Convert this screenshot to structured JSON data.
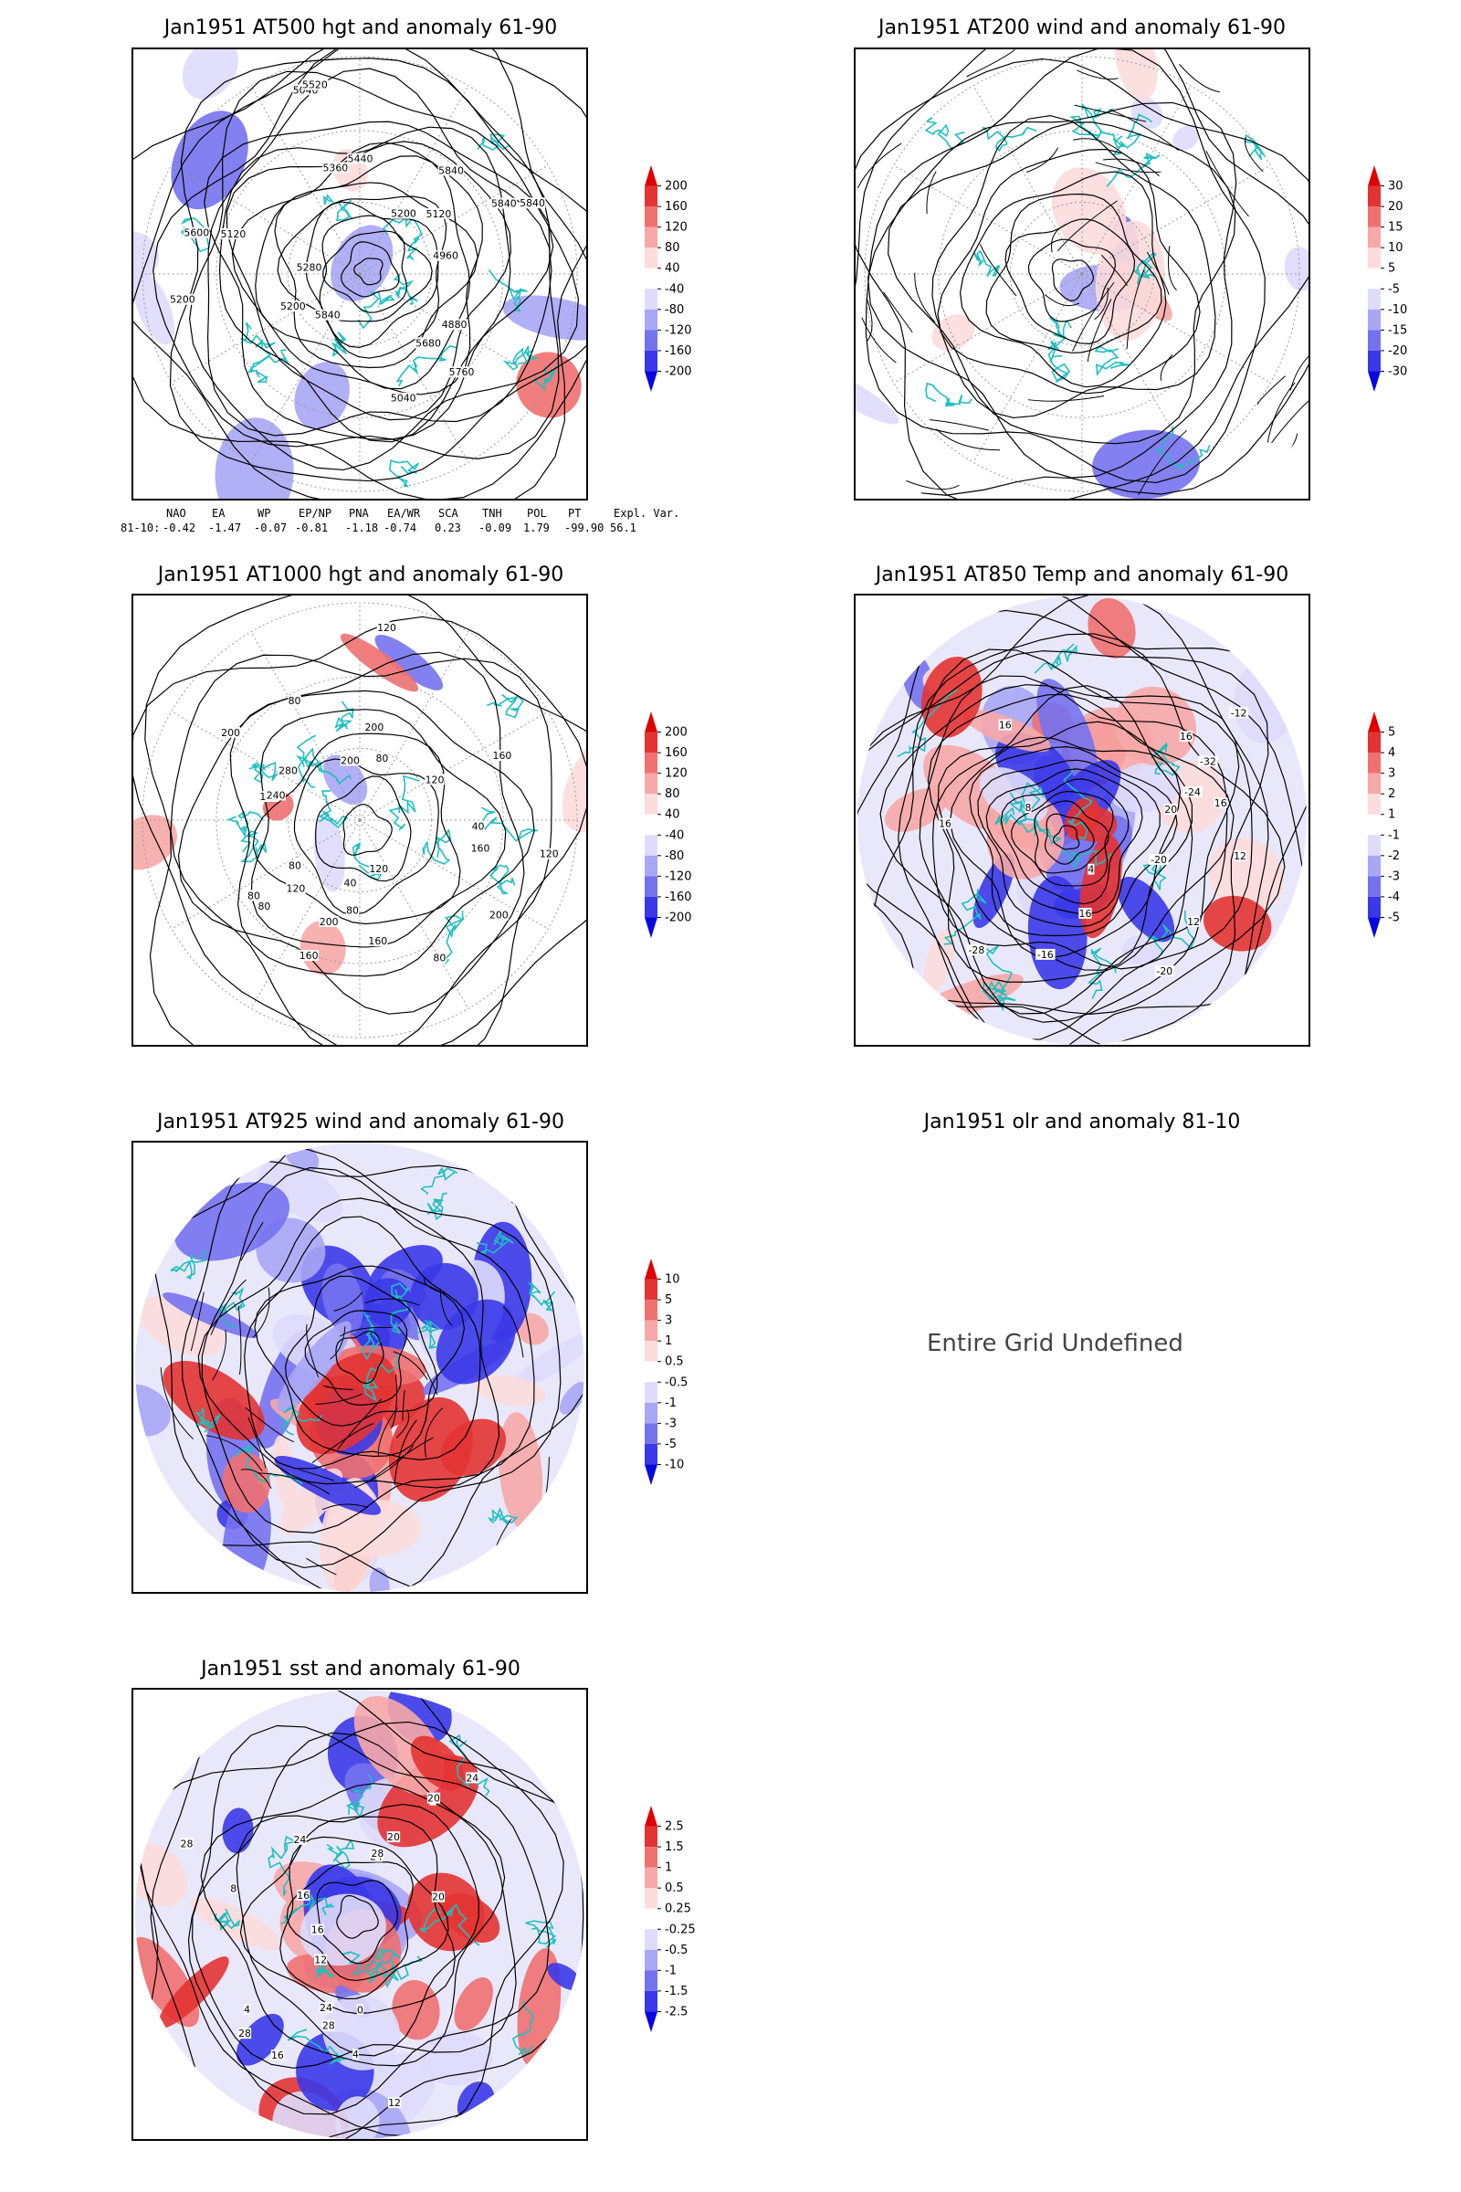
{
  "panels": [
    {
      "id": "p1",
      "title": "Jan1951 AT500 hgt and anomaly 61-90",
      "contour_labels": [
        "5840",
        "5840",
        "5200",
        "5120",
        "5200",
        "5040",
        "4960",
        "5040",
        "5120",
        "5200",
        "5280",
        "5360",
        "5440",
        "5520",
        "5600",
        "5680",
        "5760",
        "5840",
        "5840",
        "4880"
      ],
      "colorbar": [
        "200",
        "160",
        "120",
        "80",
        "40",
        "-40",
        "-80",
        "-120",
        "-160",
        "-200"
      ]
    },
    {
      "id": "p2",
      "title": "Jan1951 AT200 wind and anomaly 61-90",
      "contour_labels": [],
      "colorbar": [
        "30",
        "20",
        "15",
        "10",
        "5",
        "-5",
        "-10",
        "-15",
        "-20",
        "-30"
      ]
    },
    {
      "id": "p3",
      "title": "Jan1951 AT1000 hgt and anomaly 61-90",
      "contour_labels": [
        "80",
        "120",
        "80",
        "160",
        "200",
        "240",
        "200",
        "280",
        "200",
        "160",
        "120",
        "80",
        "40",
        "160",
        "200",
        "160",
        "120",
        "80",
        "200",
        "160",
        "120",
        "80",
        "40",
        "120",
        "80",
        "80"
      ],
      "colorbar": [
        "200",
        "160",
        "120",
        "80",
        "40",
        "-40",
        "-80",
        "-120",
        "-160",
        "-200"
      ]
    },
    {
      "id": "p4",
      "title": "Jan1951 AT850 Temp and anomaly 61-90",
      "contour_labels": [
        "16",
        "12",
        "-20",
        "-28",
        "-32",
        "-24",
        "-12",
        "-16",
        "-20",
        "4",
        "8",
        "12",
        "16",
        "20",
        "16",
        "16",
        "16"
      ],
      "colorbar": [
        "5",
        "4",
        "3",
        "2",
        "1",
        "-1",
        "-2",
        "-3",
        "-4",
        "-5"
      ]
    },
    {
      "id": "p5",
      "title": "Jan1951 AT925 wind and anomaly 61-90",
      "contour_labels": [],
      "colorbar": [
        "10",
        "5",
        "3",
        "1",
        "0.5",
        "-0.5",
        "-1",
        "-3",
        "-5",
        "-10"
      ]
    },
    {
      "id": "p6",
      "title": "Jan1951 olr and anomaly 81-10",
      "undefined_text": "Entire Grid Undefined"
    },
    {
      "id": "p7",
      "title": "Jan1951 sst and anomaly 61-90",
      "contour_labels": [
        "28",
        "28",
        "24",
        "20",
        "16",
        "12",
        "8",
        "4",
        "24",
        "20",
        "16",
        "12",
        "8",
        "4",
        "0",
        "24",
        "20",
        "28",
        "28",
        "24",
        "16"
      ],
      "colorbar": [
        "2.5",
        "1.5",
        "1",
        "0.5",
        "0.25",
        "-0.25",
        "-0.5",
        "-1",
        "-1.5",
        "-2.5"
      ]
    }
  ],
  "teleconnections": {
    "headers": [
      "NAO",
      "EA",
      "WP",
      "EP/NP",
      "PNA",
      "EA/WR",
      "SCA",
      "TNH",
      "POL",
      "PT",
      "Expl. Var."
    ],
    "row_label": "81-10:",
    "values": [
      "-0.42",
      "-1.47",
      "-0.07",
      "-0.81",
      "-1.18",
      "-0.74",
      "0.23",
      "-0.09",
      "1.79",
      "-99.90",
      "56.1"
    ]
  },
  "colors": {
    "coast": "#1fbfbf",
    "positive": [
      "#fcdcdc",
      "#f7a8a8",
      "#f07070",
      "#e33333",
      "#e00000"
    ],
    "negative": [
      "#dedcfb",
      "#a8a6f5",
      "#7572ef",
      "#3b38e8",
      "#0a06e0"
    ]
  }
}
